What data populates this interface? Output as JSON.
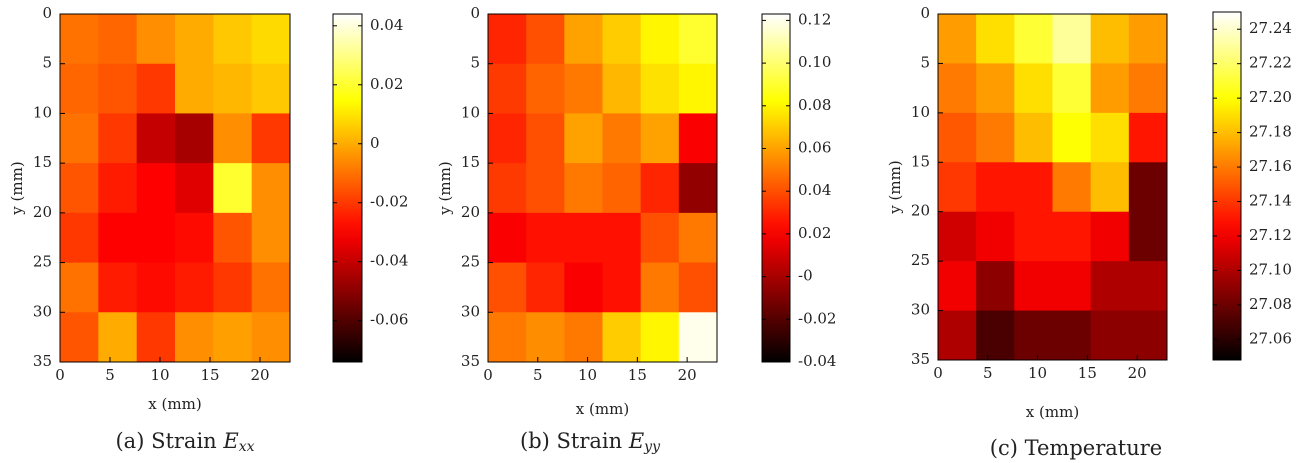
{
  "chart_data": [
    {
      "type": "heatmap",
      "caption": "(a) Strain ",
      "caption_symbol": "E",
      "caption_subscript": "xx",
      "xlabel": "x (mm)",
      "ylabel": "y (mm)",
      "xlim": [
        0,
        23
      ],
      "ylim": [
        0,
        35
      ],
      "y_inverted": true,
      "xticks": [
        0,
        5,
        10,
        15,
        20
      ],
      "yticks": [
        0,
        5,
        10,
        15,
        20,
        25,
        30,
        35
      ],
      "colormap": "hot",
      "clim": [
        -0.074,
        0.044
      ],
      "cticks": [
        -0.06,
        -0.04,
        -0.02,
        0,
        0.02,
        0.04
      ],
      "z": [
        [
          -0.01,
          -0.012,
          -0.005,
          0.0,
          0.005,
          0.008
        ],
        [
          -0.012,
          -0.015,
          -0.02,
          0.0,
          0.002,
          0.005
        ],
        [
          -0.01,
          -0.02,
          -0.04,
          -0.045,
          -0.005,
          -0.02
        ],
        [
          -0.015,
          -0.025,
          -0.03,
          -0.035,
          0.02,
          -0.005
        ],
        [
          -0.02,
          -0.03,
          -0.03,
          -0.028,
          -0.015,
          -0.005
        ],
        [
          -0.01,
          -0.025,
          -0.028,
          -0.025,
          -0.02,
          -0.01
        ],
        [
          -0.015,
          0.0,
          -0.02,
          -0.005,
          -0.002,
          -0.005
        ]
      ]
    },
    {
      "type": "heatmap",
      "caption": "(b) Strain ",
      "caption_symbol": "E",
      "caption_subscript": "yy",
      "xlabel": "x (mm)",
      "ylabel": "y (mm)",
      "xlim": [
        0,
        23
      ],
      "ylim": [
        0,
        35
      ],
      "y_inverted": true,
      "xticks": [
        0,
        5,
        10,
        15,
        20
      ],
      "yticks": [
        0,
        5,
        10,
        15,
        20,
        25,
        30,
        35
      ],
      "colormap": "hot",
      "clim": [
        -0.04,
        0.123
      ],
      "cticks": [
        -0.04,
        -0.02,
        {
          "value": 0,
          "label": "-0"
        },
        0.02,
        0.04,
        0.06,
        0.08,
        {
          "value": 0.1,
          "label": "0.10"
        },
        0.12
      ],
      "z": [
        [
          0.03,
          0.04,
          0.06,
          0.07,
          0.08,
          0.09
        ],
        [
          0.035,
          0.045,
          0.05,
          0.065,
          0.075,
          0.08
        ],
        [
          0.03,
          0.04,
          0.06,
          0.05,
          0.06,
          0.02
        ],
        [
          0.035,
          0.04,
          0.05,
          0.045,
          0.03,
          -0.005
        ],
        [
          0.02,
          0.025,
          0.025,
          0.025,
          0.04,
          0.05
        ],
        [
          0.04,
          0.03,
          0.02,
          0.025,
          0.05,
          0.04
        ],
        [
          0.05,
          0.055,
          0.05,
          0.07,
          0.08,
          0.12
        ]
      ]
    },
    {
      "type": "heatmap",
      "caption": "(c) Temperature",
      "xlabel": "x (mm)",
      "ylabel": "y (mm)",
      "xlim": [
        0,
        23
      ],
      "ylim": [
        0,
        35
      ],
      "y_inverted": true,
      "xticks": [
        0,
        5,
        10,
        15,
        20
      ],
      "yticks": [
        0,
        5,
        10,
        15,
        20,
        25,
        30,
        35
      ],
      "colormap": "hot",
      "clim": [
        27.048,
        27.25
      ],
      "cticks": [
        27.06,
        27.08,
        {
          "value": 27.1,
          "label": "27.10"
        },
        27.12,
        27.14,
        27.16,
        27.18,
        {
          "value": 27.2,
          "label": "27.20"
        },
        27.22,
        27.24
      ],
      "z": [
        [
          27.17,
          27.19,
          27.21,
          27.23,
          27.18,
          27.17
        ],
        [
          27.16,
          27.17,
          27.19,
          27.21,
          27.17,
          27.16
        ],
        [
          27.15,
          27.16,
          27.18,
          27.2,
          27.19,
          27.13
        ],
        [
          27.14,
          27.13,
          27.13,
          27.16,
          27.18,
          27.08
        ],
        [
          27.11,
          27.12,
          27.13,
          27.13,
          27.12,
          27.08
        ],
        [
          27.12,
          27.09,
          27.12,
          27.12,
          27.1,
          27.1
        ],
        [
          27.1,
          27.07,
          27.08,
          27.08,
          27.09,
          27.09
        ]
      ]
    }
  ]
}
